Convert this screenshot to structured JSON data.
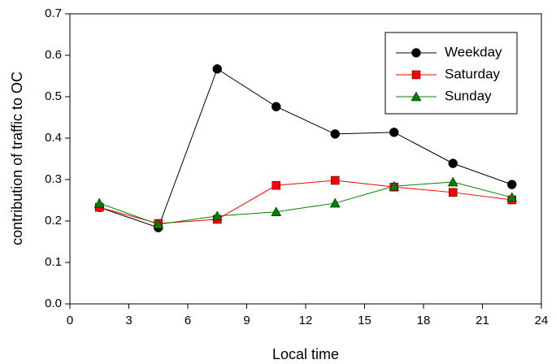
{
  "chart_data": {
    "type": "line",
    "x_label": "Local time",
    "y_label": "contribution of traffic to OC",
    "x": [
      1.5,
      4.5,
      7.5,
      10.5,
      13.5,
      16.5,
      19.5,
      22.5
    ],
    "series": [
      {
        "name": "Weekday",
        "color": "#000000",
        "marker": "circle",
        "values": [
          0.233,
          0.184,
          0.567,
          0.476,
          0.41,
          0.414,
          0.339,
          0.288
        ]
      },
      {
        "name": "Saturday",
        "color": "#ff0000",
        "marker": "square",
        "values": [
          0.233,
          0.194,
          0.204,
          0.286,
          0.298,
          0.282,
          0.269,
          0.251
        ]
      },
      {
        "name": "Sunday",
        "color": "#008000",
        "marker": "triangle",
        "values": [
          0.243,
          0.192,
          0.212,
          0.222,
          0.243,
          0.284,
          0.294,
          0.257
        ]
      }
    ],
    "xlim": [
      0,
      24
    ],
    "xticks": [
      0,
      3,
      6,
      9,
      12,
      15,
      18,
      21,
      24
    ],
    "ylim": [
      0,
      0.7
    ],
    "yticks": [
      {
        "value": 0,
        "label": "0.0"
      },
      0.1,
      0.2,
      0.3,
      0.4,
      0.5,
      0.6,
      0.7
    ],
    "legend": "upper right",
    "grid": false
  }
}
